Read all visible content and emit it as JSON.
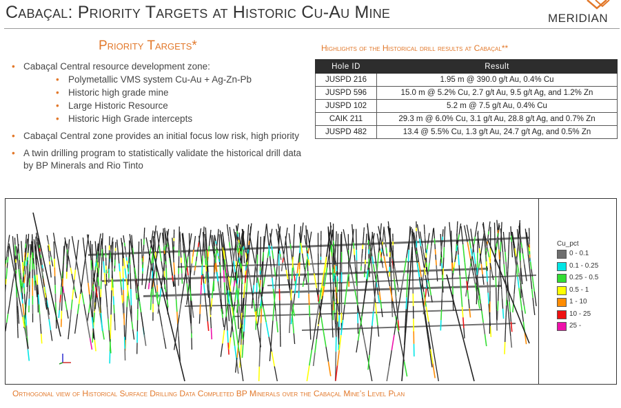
{
  "header": {
    "title": "Cabaçal: Priority Targets at Historic Cu-Au Mine",
    "logo_text": "MERIDIAN"
  },
  "priority": {
    "heading": "Priority Targets*",
    "bullets": [
      {
        "text": "Cabaçal Central resource development zone:",
        "sub": [
          "Polymetallic VMS system Cu-Au + Ag-Zn-Pb",
          "Historic high grade mine",
          "Large Historic Resource",
          "Historic High Grade intercepts"
        ]
      },
      {
        "text": "Cabaçal Central zone provides an initial focus low risk, high priority"
      },
      {
        "text": "A twin drilling program to statistically validate the historical drill data by BP Minerals and Rio Tinto"
      }
    ]
  },
  "highlights": {
    "heading": "Highlights of the Historical drill results at Cabaçal**",
    "columns": [
      "Hole ID",
      "Result"
    ],
    "rows": [
      [
        "JUSPD 216",
        "1.95 m @ 390.0 g/t Au, 0.4% Cu"
      ],
      [
        "JUSPD 596",
        "15.0 m @ 5.2% Cu, 2.7 g/t Au, 9.5 g/t Ag, and 1.2% Zn"
      ],
      [
        "JUSPD 102",
        "5.2 m @ 7.5 g/t Au, 0.4% Cu"
      ],
      [
        "CAIK 211",
        "29.3 m @ 6.0% Cu, 3.1 g/t Au, 28.8 g/t Ag, and 0.7% Zn"
      ],
      [
        "JUSPD 482",
        "13.4 @ 5.5% Cu, 1.3 g/t Au, 24.7 g/t Ag, and 0.5% Zn"
      ]
    ]
  },
  "legend": {
    "title": "Cu_pct",
    "items": [
      {
        "label": "0  -  0.1",
        "color": "#6e6e6e"
      },
      {
        "label": "0.1  -  0.25",
        "color": "#00e5e5"
      },
      {
        "label": "0.25  -  0.5",
        "color": "#33dd33"
      },
      {
        "label": "0.5  -  1",
        "color": "#ffff00"
      },
      {
        "label": "1  -  10",
        "color": "#ff8c00"
      },
      {
        "label": "10  -  25",
        "color": "#ee1111"
      },
      {
        "label": "25  -",
        "color": "#ee11aa"
      }
    ]
  },
  "colors": {
    "accent": "#E2782A",
    "table_header": "#2d2d2d"
  },
  "caption": "Orthogonal view of Historical Surface Drilling Data Completed BP Minerals over the Cabaçal Mine’s Level Plan"
}
